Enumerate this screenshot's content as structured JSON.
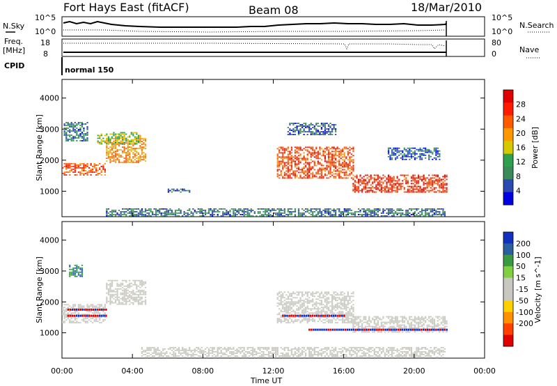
{
  "header": {
    "station": "Fort Hays East (fitACF)",
    "beam": "Beam 08",
    "date": "18/Mar/2010"
  },
  "top_panels": {
    "nsky_label": "N.Sky",
    "nsearch_label": "N.Search",
    "count_ticks": [
      "10^5",
      "10^0"
    ],
    "freq_label": "Freq.",
    "freq_unit": "[MHz]",
    "freq_ticks": [
      "18",
      "8"
    ],
    "nave_label": "Nave",
    "nave_ticks": [
      "80",
      "0"
    ],
    "cpid_label": "CPID",
    "cpid_value": "normal 150"
  },
  "colors": {
    "power_scale": [
      "#0000e0",
      "#2a4ab0",
      "#3a8a5a",
      "#2fa050",
      "#d7c800",
      "#ff9800",
      "#ff5a00",
      "#ff1a00",
      "#e00000"
    ],
    "velocity_scale": [
      "#1030c0",
      "#2a60a0",
      "#3a9a40",
      "#80d040",
      "#c8c8c0",
      "#c8c8c0",
      "#ffd000",
      "#ff9000",
      "#ff4000",
      "#e00000"
    ]
  },
  "chart_data": [
    {
      "type": "heatmap",
      "title": "",
      "xlabel": "Time UT",
      "ylabel": "Slant Range [km]",
      "xlim": [
        "00:00",
        "24:00"
      ],
      "ylim": [
        180,
        4600
      ],
      "x_ticks": [
        "00:00",
        "04:00",
        "08:00",
        "12:00",
        "16:00",
        "20:00",
        "00:00"
      ],
      "y_ticks": [
        1000,
        2000,
        3000,
        4000
      ],
      "colorbar": {
        "label": "Power [dB]",
        "range": [
          0,
          32
        ],
        "ticks": [
          4,
          8,
          12,
          16,
          20,
          24,
          28
        ]
      },
      "bands": [
        {
          "t_start": 0.0,
          "t_end": 2.5,
          "r_start": 1500,
          "r_end": 1900,
          "value": 24
        },
        {
          "t_start": 2.5,
          "t_end": 4.7,
          "r_start": 1900,
          "r_end": 2700,
          "value": 20
        },
        {
          "t_start": 0.1,
          "t_end": 1.5,
          "r_start": 2600,
          "r_end": 3200,
          "value": 8
        },
        {
          "t_start": 2.0,
          "t_end": 4.5,
          "r_start": 2500,
          "r_end": 2900,
          "value": 14
        },
        {
          "t_start": 6.0,
          "t_end": 7.2,
          "r_start": 950,
          "r_end": 1050,
          "value": 6
        },
        {
          "t_start": 12.2,
          "t_end": 16.5,
          "r_start": 1400,
          "r_end": 2400,
          "value": 24
        },
        {
          "t_start": 16.5,
          "t_end": 21.9,
          "r_start": 950,
          "r_end": 1500,
          "value": 26
        },
        {
          "t_start": 12.8,
          "t_end": 15.5,
          "r_start": 2800,
          "r_end": 3200,
          "value": 6
        },
        {
          "t_start": 18.5,
          "t_end": 21.5,
          "r_start": 2000,
          "r_end": 2400,
          "value": 6
        },
        {
          "t_start": 2.5,
          "t_end": 21.8,
          "r_start": 180,
          "r_end": 450,
          "value": 8
        }
      ]
    },
    {
      "type": "heatmap",
      "title": "",
      "xlabel": "Time UT",
      "ylabel": "Slant Range [km]",
      "xlim": [
        "00:00",
        "24:00"
      ],
      "ylim": [
        180,
        4600
      ],
      "x_ticks": [
        "00:00",
        "04:00",
        "08:00",
        "12:00",
        "16:00",
        "20:00",
        "00:00"
      ],
      "y_ticks": [
        1000,
        2000,
        3000,
        4000
      ],
      "colorbar": {
        "label": "Velocity [m s^-1]",
        "range": [
          -250,
          250
        ],
        "ticks": [
          200,
          100,
          50,
          15,
          -15,
          -50,
          -100,
          -200
        ]
      },
      "bands": [
        {
          "t_start": 0.0,
          "t_end": 2.5,
          "r_start": 1300,
          "r_end": 1900,
          "value": 0
        },
        {
          "t_start": 2.5,
          "t_end": 4.7,
          "r_start": 1900,
          "r_end": 2700,
          "value": 0
        },
        {
          "t_start": 0.4,
          "t_end": 1.2,
          "r_start": 2800,
          "r_end": 3200,
          "value": 150
        },
        {
          "t_start": 12.2,
          "t_end": 16.5,
          "r_start": 1300,
          "r_end": 2300,
          "value": 0
        },
        {
          "t_start": 16.5,
          "t_end": 21.9,
          "r_start": 1000,
          "r_end": 1500,
          "value": 0
        },
        {
          "t_start": 4.5,
          "t_end": 21.8,
          "r_start": 180,
          "r_end": 500,
          "value": 30
        }
      ],
      "ground_scatter_lines": [
        {
          "t_start": 0.3,
          "t_end": 2.5,
          "range": 1550
        },
        {
          "t_start": 0.3,
          "t_end": 2.5,
          "range": 1750
        },
        {
          "t_start": 14.0,
          "t_end": 21.9,
          "range": 1100
        },
        {
          "t_start": 12.5,
          "t_end": 16.0,
          "range": 1550
        }
      ]
    }
  ]
}
